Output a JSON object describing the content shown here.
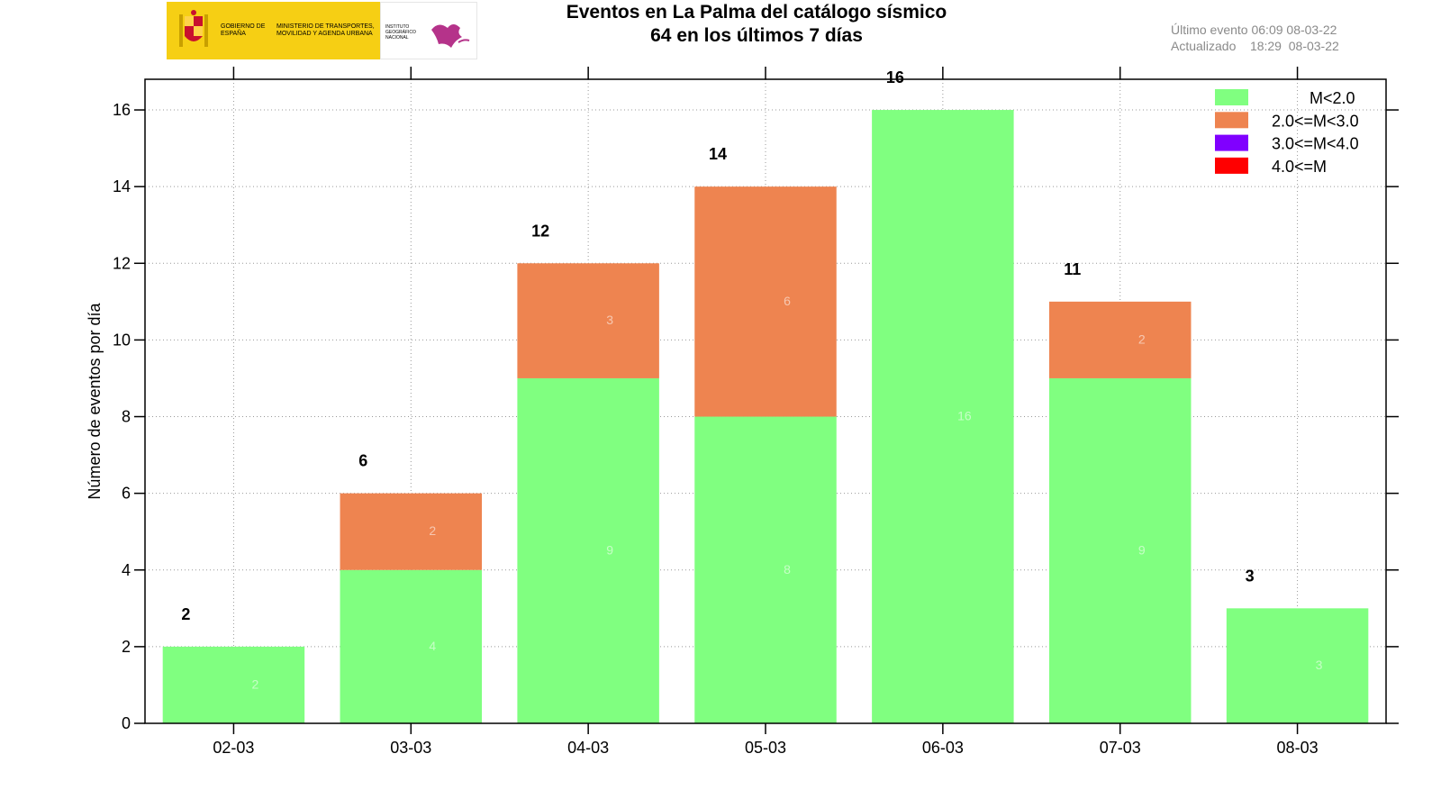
{
  "header": {
    "title_line1": "Eventos en La Palma del catálogo sísmico",
    "title_line2": "64 en los últimos 7 días",
    "last_event": "Último evento 06:09 08-03-22",
    "updated": "Actualizado    18:29  08-03-22"
  },
  "logos": {
    "gov_text": "GOBIERNO DE ESPAÑA",
    "ministry_text": "MINISTERIO DE TRANSPORTES, MOVILIDAD Y AGENDA URBANA",
    "ign_text": "INSTITUTO GEOGRÁFICO NACIONAL",
    "gov_color": "#f6cf14",
    "ign_color": "#b5338a"
  },
  "chart_data": {
    "type": "bar",
    "stacked": true,
    "categories": [
      "02-03",
      "03-03",
      "04-03",
      "05-03",
      "06-03",
      "07-03",
      "08-03"
    ],
    "series": [
      {
        "name": "M<2.0",
        "color": "#80ff80",
        "values": [
          2,
          4,
          9,
          8,
          16,
          9,
          3
        ],
        "labels": [
          "2",
          "4",
          "9",
          "8",
          "16",
          "9",
          "3"
        ]
      },
      {
        "name": "2.0<=M<3.0",
        "color": "#ee8450",
        "values": [
          0,
          2,
          3,
          6,
          0,
          2,
          0
        ],
        "labels": [
          "",
          "2",
          "3",
          "6",
          "",
          "2",
          ""
        ]
      },
      {
        "name": "3.0<=M<4.0",
        "color": "#8000ff",
        "values": [
          0,
          0,
          0,
          0,
          0,
          0,
          0
        ]
      },
      {
        "name": "4.0<=M",
        "color": "#ff0000",
        "values": [
          0,
          0,
          0,
          0,
          0,
          0,
          0
        ]
      }
    ],
    "totals": [
      2,
      6,
      12,
      14,
      16,
      11,
      3
    ],
    "ylabel": "Número de eventos por día",
    "xlabel": "",
    "ylim": [
      0,
      16.8
    ],
    "yticks": [
      0,
      2,
      4,
      6,
      8,
      10,
      12,
      14,
      16
    ],
    "grid": true,
    "legend_position": "top-right"
  }
}
